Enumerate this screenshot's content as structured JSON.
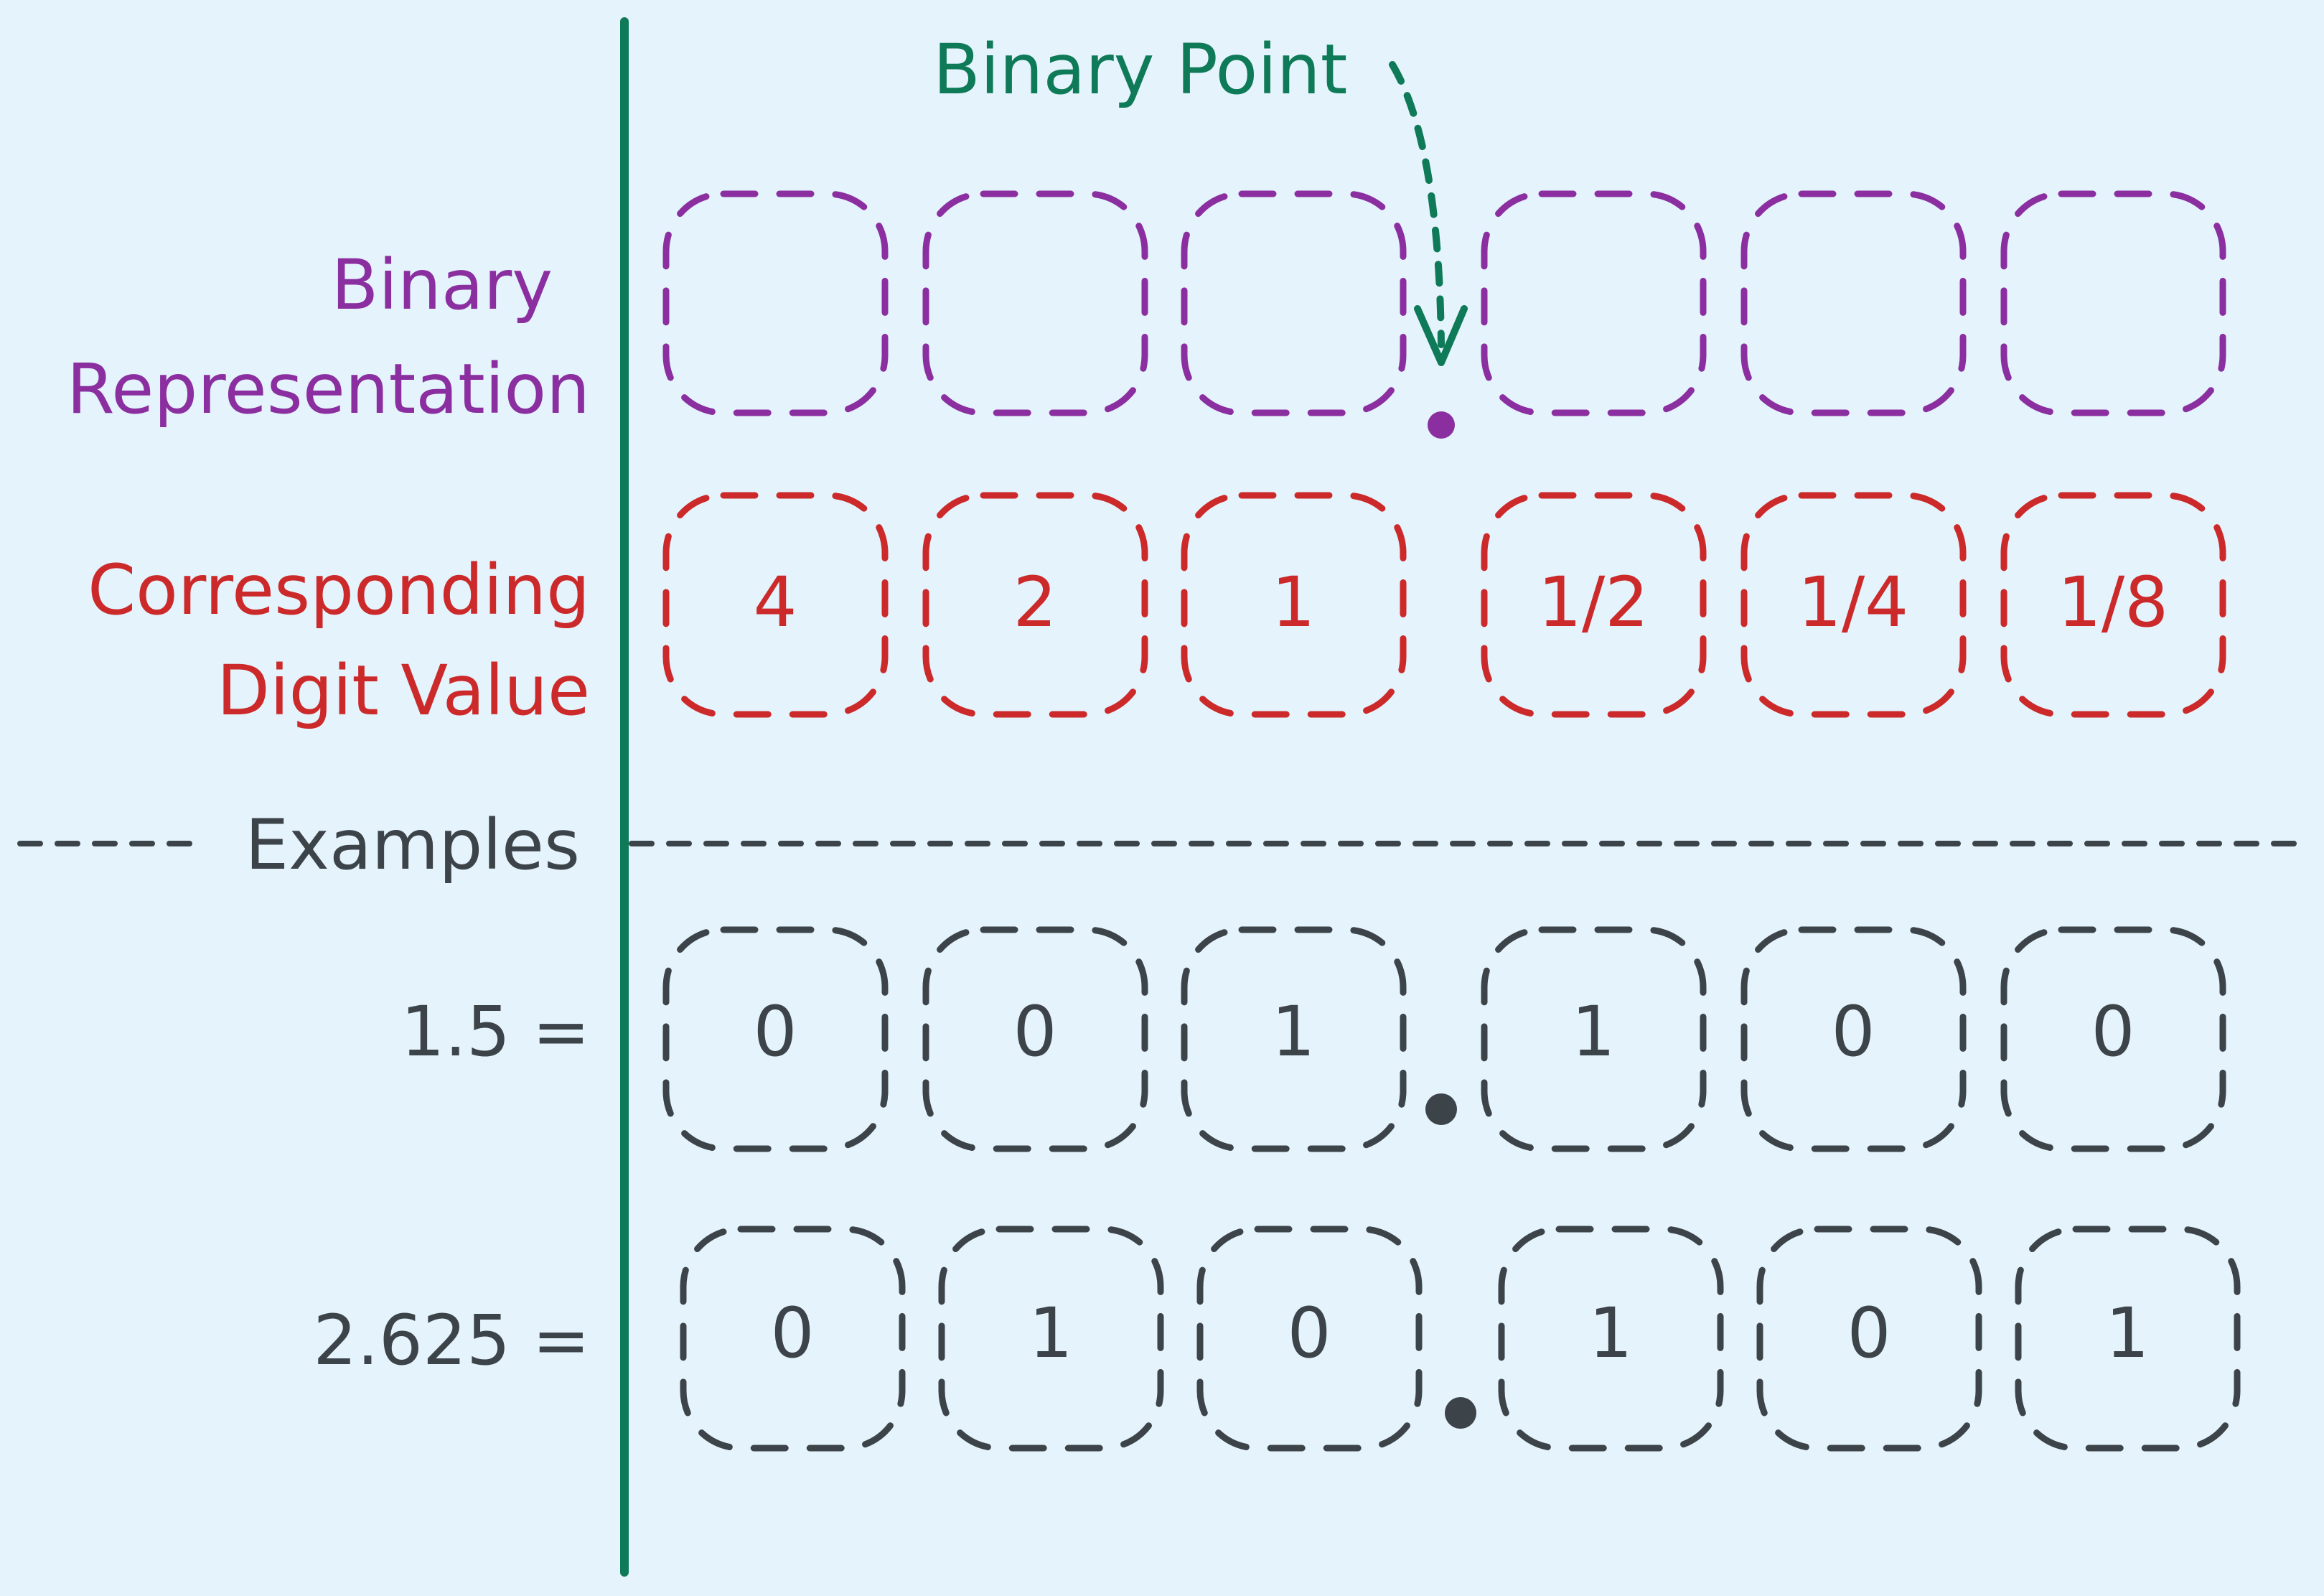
{
  "colors": {
    "background": "#e4f3fc",
    "divider": "#0e7a57",
    "binary_point": "#0e7a57",
    "representation": "#8b2fa0",
    "digit_value": "#cc2a2a",
    "examples": "#3d4449"
  },
  "binary_point_label": "Binary Point",
  "rows": {
    "representation": {
      "label_lines": [
        "Binary",
        "Representation"
      ],
      "cells": [
        "",
        "",
        "",
        "",
        "",
        ""
      ]
    },
    "digit_value": {
      "label_lines": [
        "Corresponding",
        "Digit Value"
      ],
      "cells": [
        "4",
        "2",
        "1",
        "1/2",
        "1/4",
        "1/8"
      ]
    },
    "examples_header": "Examples",
    "example_1": {
      "label": "1.5 =",
      "cells": [
        "0",
        "0",
        "1",
        "1",
        "0",
        "0"
      ]
    },
    "example_2": {
      "label": "2.625 =",
      "cells": [
        "0",
        "1",
        "0",
        "1",
        "0",
        "1"
      ]
    }
  }
}
